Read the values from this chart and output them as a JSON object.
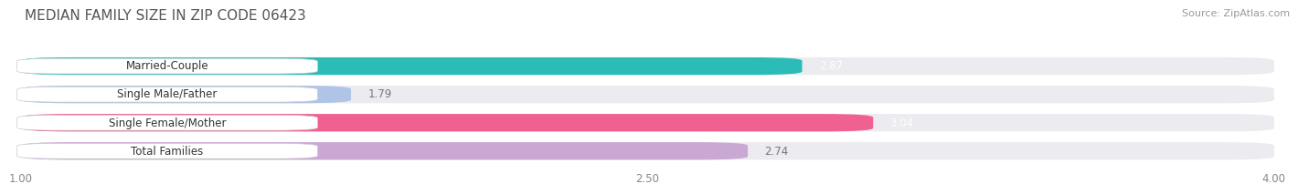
{
  "title": "MEDIAN FAMILY SIZE IN ZIP CODE 06423",
  "source": "Source: ZipAtlas.com",
  "categories": [
    "Married-Couple",
    "Single Male/Father",
    "Single Female/Mother",
    "Total Families"
  ],
  "values": [
    2.87,
    1.79,
    3.04,
    2.74
  ],
  "bar_colors": [
    "#2bbcb8",
    "#b0c4e8",
    "#f06090",
    "#c9a8d4"
  ],
  "value_label_colors": [
    "white",
    "#777777",
    "white",
    "#777777"
  ],
  "xlim": [
    1.0,
    4.0
  ],
  "xticks": [
    1.0,
    2.5,
    4.0
  ],
  "xtick_labels": [
    "1.00",
    "2.50",
    "4.00"
  ],
  "background_color": "#ffffff",
  "bar_bg_color": "#ebebf0",
  "bar_height": 0.62,
  "label_fontsize": 8.5,
  "value_fontsize": 8.5,
  "title_fontsize": 11,
  "source_fontsize": 8
}
